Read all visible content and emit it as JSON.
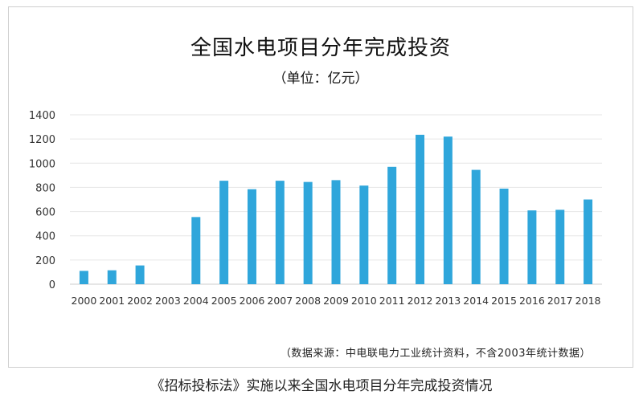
{
  "title": "全国水电项目分年完成投资",
  "subtitle": "（单位：亿元）",
  "source": "（数据来源：中电联电力工业统计资料，不含2003年统计数据）",
  "caption": "《招标投标法》实施以来全国水电项目分年完成投资情况",
  "colors": {
    "bar": "#2fa6db",
    "grid": "#e6e6e6",
    "axis": "#cccccc",
    "text": "#333333"
  },
  "chart_data": {
    "type": "bar",
    "title": "全国水电项目分年完成投资",
    "ylabel": "",
    "xlabel": "",
    "ylim": [
      0,
      1400
    ],
    "yticks": [
      0,
      200,
      400,
      600,
      800,
      1000,
      1200,
      1400
    ],
    "grid": true,
    "categories": [
      "2000",
      "2001",
      "2002",
      "2003",
      "2004",
      "2005",
      "2006",
      "2007",
      "2008",
      "2009",
      "2010",
      "2011",
      "2012",
      "2013",
      "2014",
      "2015",
      "2016",
      "2017",
      "2018"
    ],
    "values": [
      110,
      115,
      155,
      0,
      555,
      855,
      785,
      855,
      845,
      860,
      815,
      970,
      1235,
      1220,
      945,
      790,
      610,
      615,
      700
    ]
  }
}
